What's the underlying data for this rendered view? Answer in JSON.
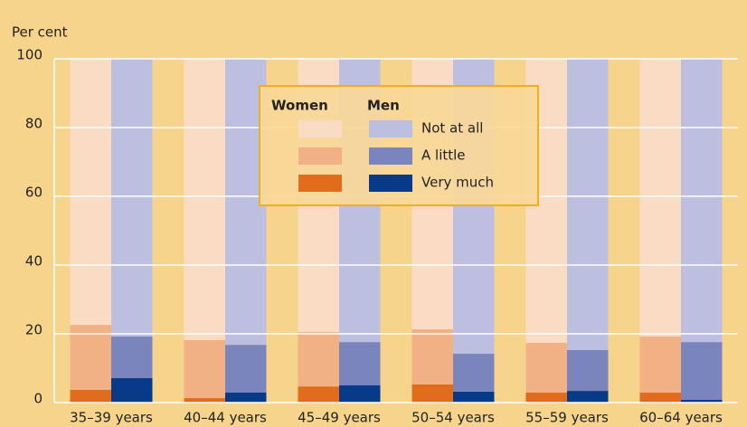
{
  "chart_data": {
    "type": "grouped_stacked_bar",
    "y_label": "Per cent",
    "categories": [
      "35–39 years",
      "40–44 years",
      "45–49 years",
      "50–54 years",
      "55–59 years",
      "60–64 years"
    ],
    "stack_names": [
      "Very much",
      "A little",
      "Not at all"
    ],
    "groups": [
      {
        "name": "Women",
        "name_color": "#e0701e",
        "series": [
          {
            "color": "#e06c1c",
            "values": [
              3.7,
              1.3,
              4.7,
              5.3,
              2.9,
              2.9
            ]
          },
          {
            "color": "#f2b184",
            "values": [
              18.9,
              16.9,
              15.8,
              16.0,
              14.5,
              16.3
            ]
          },
          {
            "color": "#f9dcc3",
            "values": [
              77.4,
              81.8,
              79.5,
              78.7,
              82.6,
              80.8
            ]
          }
        ]
      },
      {
        "name": "Men",
        "name_color": "#0a3a88",
        "series": [
          {
            "color": "#073b8a",
            "values": [
              7.1,
              2.9,
              5.0,
              3.2,
              3.4,
              0.8
            ]
          },
          {
            "color": "#7a85bd",
            "values": [
              12.1,
              13.9,
              12.6,
              11.0,
              11.9,
              16.8
            ]
          },
          {
            "color": "#bcbfdf",
            "values": [
              80.8,
              83.2,
              82.4,
              85.8,
              84.7,
              82.4
            ]
          }
        ]
      }
    ],
    "ylim": [
      0,
      100
    ],
    "yticks": [
      0,
      20,
      40,
      60,
      80,
      100
    ],
    "grid": true
  }
}
